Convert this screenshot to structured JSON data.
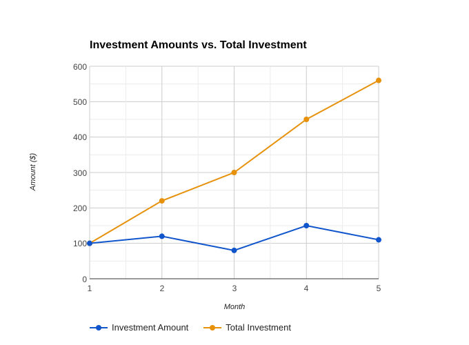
{
  "chart_data": {
    "type": "line",
    "title": "Investment Amounts vs. Total Investment",
    "xlabel": "Month",
    "ylabel": "Amount ($)",
    "x": [
      1,
      2,
      3,
      4,
      5
    ],
    "ylim": [
      0,
      600
    ],
    "yticks": [
      0,
      100,
      200,
      300,
      400,
      500,
      600
    ],
    "grid": true,
    "legend_position": "bottom",
    "series": [
      {
        "name": "Investment Amount",
        "color": "#1155cc",
        "values": [
          100,
          120,
          80,
          150,
          110
        ]
      },
      {
        "name": "Total Investment",
        "color": "#e69109",
        "values": [
          100,
          220,
          300,
          450,
          560
        ]
      }
    ]
  },
  "labels": {
    "title": "Investment Amounts vs. Total Investment",
    "xlabel": "Month",
    "ylabel": "Amount ($)",
    "yticks": [
      "0",
      "100",
      "200",
      "300",
      "400",
      "500",
      "600"
    ],
    "xticks": [
      "1",
      "2",
      "3",
      "4",
      "5"
    ],
    "legend": [
      "Investment Amount",
      "Total Investment"
    ]
  }
}
